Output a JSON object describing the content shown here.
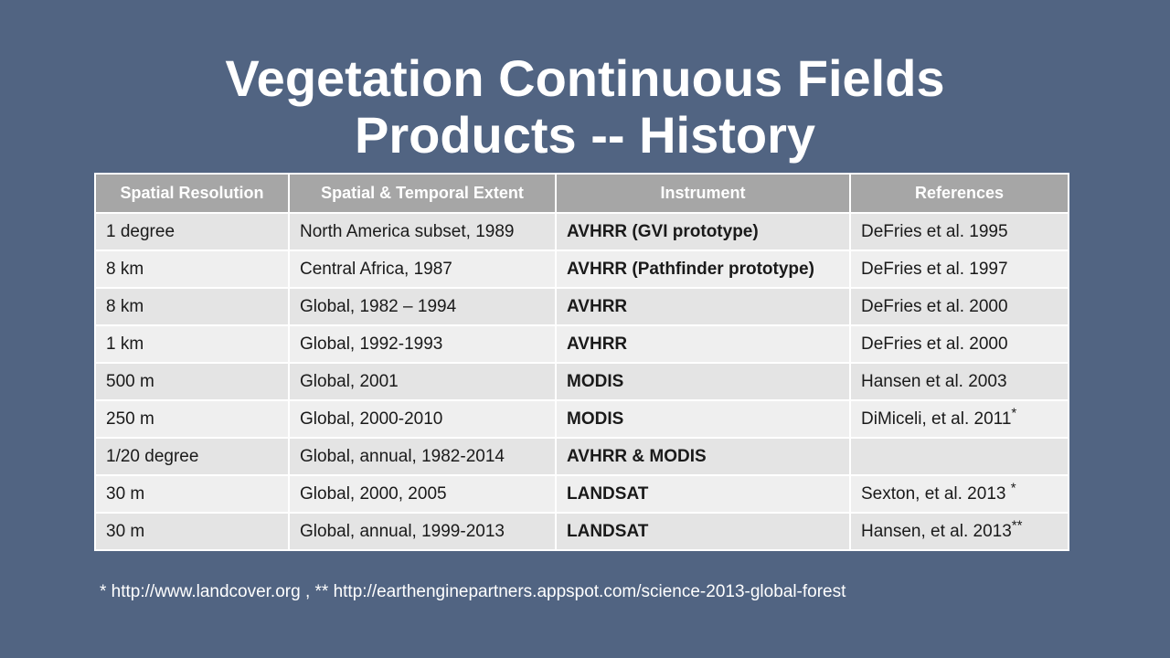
{
  "title": {
    "line1": "Vegetation Continuous Fields",
    "line2": "Products -- History"
  },
  "table": {
    "header": [
      "Spatial Resolution",
      "Spatial & Temporal Extent",
      "Instrument",
      "References"
    ],
    "rows": [
      {
        "resolution": "1 degree",
        "extent": "North America subset, 1989",
        "instrument": "AVHRR (GVI prototype)",
        "reference": "DeFries et al. 1995"
      },
      {
        "resolution": "8 km",
        "extent": "Central Africa, 1987",
        "instrument": "AVHRR (Pathfinder prototype)",
        "reference": "DeFries et al. 1997"
      },
      {
        "resolution": "8 km",
        "extent": "Global, 1982 – 1994",
        "instrument": "AVHRR",
        "reference": "DeFries et al. 2000"
      },
      {
        "resolution": "1 km",
        "extent": "Global, 1992-1993",
        "instrument": "AVHRR",
        "reference": "DeFries et al. 2000"
      },
      {
        "resolution": "500 m",
        "extent": "Global, 2001",
        "instrument": "MODIS",
        "reference": "Hansen et al. 2003"
      },
      {
        "resolution": "250 m",
        "extent": "Global, 2000-2010",
        "instrument": "MODIS",
        "reference": "DiMiceli, et al. 2011",
        "note": "*"
      },
      {
        "resolution": "1/20 degree",
        "extent": "Global, annual, 1982-2014",
        "instrument": "AVHRR & MODIS"
      },
      {
        "resolution": "30 m",
        "extent": "Global, 2000, 2005",
        "instrument": "LANDSAT",
        "reference": "Sexton, et al. 2013 ",
        "note": "*"
      },
      {
        "resolution": "30 m",
        "extent": "Global, annual, 1999-2013",
        "instrument": "LANDSAT",
        "reference": "Hansen, et al. 2013",
        "note": "**"
      }
    ]
  },
  "footnote": "* http://www.landcover.org , ** http://earthenginepartners.appspot.com/science-2013-global-forest"
}
